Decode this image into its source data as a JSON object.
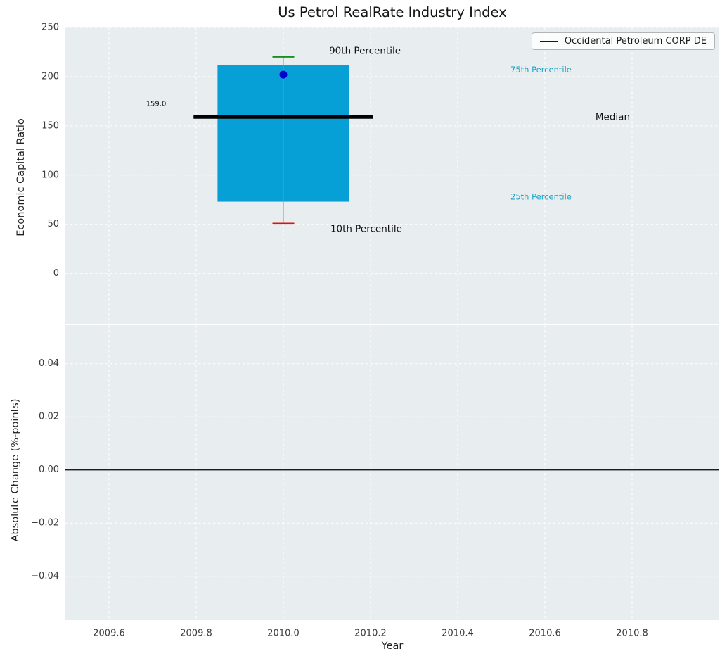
{
  "figure": {
    "title": "Us Petrol RealRate Industry Index",
    "background": "#ffffff",
    "axes_background": "#e8eef0",
    "grid_color": "#ffffff"
  },
  "legend": {
    "label": "Occidental Petroleum CORP DE",
    "line_color": "#0000cd",
    "position": "upper right"
  },
  "chart_data": [
    {
      "type": "boxplot",
      "title": "Us Petrol RealRate Industry Index",
      "ylabel": "Economic Capital Ratio",
      "xlabel": "",
      "xlim": [
        2009.5,
        2011.0
      ],
      "ylim": [
        -51,
        250
      ],
      "grid": true,
      "yticks": [
        250,
        200,
        150,
        100,
        50,
        0
      ],
      "ytick_labels": [
        "250",
        "200",
        "150",
        "100",
        "50",
        "0"
      ],
      "xticks": [
        2009.6,
        2009.8,
        2010.0,
        2010.2,
        2010.4,
        2010.6,
        2010.8
      ],
      "box": {
        "x": 2010.0,
        "q1": 73,
        "q3": 212,
        "median": 159.0,
        "whisker_low": 51,
        "whisker_high": 220,
        "box_halfwidth_years": 0.151,
        "median_halfwidth_years": 0.206,
        "cap_halfwidth_years": 0.025,
        "box_color": "#069fd6",
        "median_color": "#000000",
        "whisker_color": "#909090",
        "cap_high_color": "#008000",
        "cap_low_color": "#dd1111"
      },
      "series": [
        {
          "name": "Occidental Petroleum CORP DE",
          "x": [
            2010.0
          ],
          "y": [
            202
          ],
          "color": "#0000cd",
          "marker": "circle"
        }
      ],
      "annotations": [
        {
          "text": "90th Percentile",
          "x": 2010.105,
          "y": 226,
          "color": "#111111",
          "size": 13.5
        },
        {
          "text": "10th Percentile",
          "x": 2010.108,
          "y": 45,
          "color": "#111111",
          "size": 13.5
        },
        {
          "text": "75th Percentile",
          "x": 2010.521,
          "y": 207,
          "color": "#16a2c9",
          "size": 11.5
        },
        {
          "text": "25th Percentile",
          "x": 2010.521,
          "y": 78,
          "color": "#16a2c9",
          "size": 11.5
        },
        {
          "text": "Median",
          "x": 2010.716,
          "y": 159,
          "color": "#111111",
          "size": 13.5
        },
        {
          "text": "159.0",
          "x": 2009.685,
          "y": 172,
          "color": "#111111",
          "size": 10
        }
      ]
    },
    {
      "type": "line",
      "title": "",
      "ylabel": "Absolute Change (%-points)",
      "xlabel": "Year",
      "xlim": [
        2009.5,
        2011.0
      ],
      "ylim": [
        -0.0565,
        0.0545
      ],
      "grid": true,
      "yticks": [
        0.04,
        0.02,
        0.0,
        -0.02,
        -0.04
      ],
      "ytick_labels": [
        "0.04",
        "0.02",
        "0.00",
        "−0.02",
        "−0.04"
      ],
      "xticks": [
        2009.6,
        2009.8,
        2010.0,
        2010.2,
        2010.4,
        2010.6,
        2010.8
      ],
      "xtick_labels": [
        "2009.6",
        "2009.8",
        "2010.0",
        "2010.2",
        "2010.4",
        "2010.6",
        "2010.8"
      ],
      "zero_line": {
        "y": 0.0,
        "color": "#000000"
      },
      "series": []
    }
  ]
}
